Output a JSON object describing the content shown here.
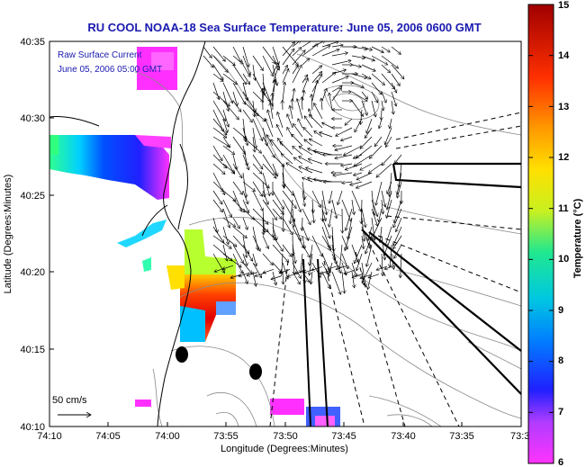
{
  "title": "RU COOL  NOAA-18  Sea Surface Temperature:  June 05, 2006 0600 GMT",
  "legend": {
    "line1": "Raw Surface Current",
    "line2": "June 05, 2006 05:00 GMT"
  },
  "scale_label": "50 cm/s",
  "x_axis": {
    "label": "Longitude (Degrees:Minutes)",
    "ticks": [
      "74:10",
      "74:05",
      "74:00",
      "73:55",
      "73:50",
      "73:45",
      "73:40",
      "73:35",
      "73:3"
    ]
  },
  "y_axis": {
    "label": "Latitude (Degrees:Minutes)",
    "ticks": [
      "40:35",
      "40:30",
      "40:25",
      "40:20",
      "40:15",
      "40:10"
    ]
  },
  "colorbar": {
    "label": "Temperature (°C)",
    "ticks": [
      "15",
      "14",
      "13",
      "12",
      "11",
      "10",
      "9",
      "8",
      "7",
      "6"
    ],
    "min": 6,
    "max": 15
  }
}
